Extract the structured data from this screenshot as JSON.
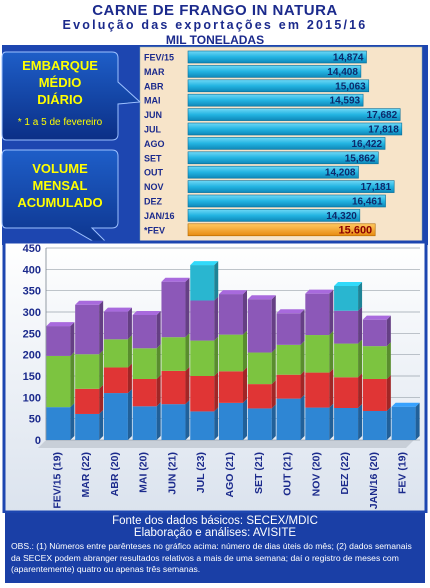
{
  "header": {
    "title": "CARNE DE FRANGO IN NATURA",
    "subtitle": "Evolução das exportações em 2015/16",
    "units": "MIL TONELADAS"
  },
  "callouts": {
    "daily": {
      "lines": [
        "EMBARQUE",
        "MÉDIO",
        "DIÁRIO"
      ],
      "note": "* 1 a 5 de fevereiro"
    },
    "monthly": {
      "lines": [
        "VOLUME",
        "MENSAL",
        "ACUMULADO"
      ]
    }
  },
  "chart_data": [
    {
      "type": "bar",
      "orientation": "horizontal",
      "categories": [
        "FEV/15",
        "MAR",
        "ABR",
        "MAI",
        "JUN",
        "JUL",
        "AGO",
        "SET",
        "OUT",
        "NOV",
        "DEZ",
        "JAN/16",
        "*FEV"
      ],
      "values": [
        14874,
        14408,
        15063,
        14593,
        17682,
        17818,
        16422,
        15862,
        14208,
        17181,
        16461,
        14320,
        15600
      ],
      "value_labels": [
        "14,874",
        "14,408",
        "15,063",
        "14,593",
        "17,682",
        "17,818",
        "16,422",
        "15,862",
        "14,208",
        "17,181",
        "16,461",
        "14,320",
        "15.600"
      ],
      "title": "",
      "xlabel": "",
      "ylabel": "",
      "xlim": [
        0,
        19000
      ],
      "colors": {
        "bar": "#2fbde8",
        "highlight": "#f5a020",
        "background": "#f7e4c9"
      }
    },
    {
      "type": "bar",
      "stacked": true,
      "categories": [
        "FEV/15 (19)",
        "MAR (22)",
        "ABR (20)",
        "MAI (20)",
        "JUN (21)",
        "JUL (23)",
        "AGO (21)",
        "SET (21)",
        "OUT (21)",
        "NOV (20)",
        "DEZ (22)",
        "JAN/16 (20)",
        "FEV (19)"
      ],
      "series": [
        {
          "color": "#2e86d4",
          "values": [
            77,
            61,
            110,
            79,
            84,
            67,
            87,
            74,
            97,
            76,
            75,
            68,
            78
          ]
        },
        {
          "color": "#e03535",
          "values": [
            0,
            59,
            60,
            64,
            78,
            83,
            74,
            57,
            56,
            82,
            72,
            75,
            0
          ]
        },
        {
          "color": "#7cc440",
          "values": [
            120,
            81,
            66,
            72,
            79,
            83,
            86,
            74,
            70,
            88,
            79,
            77,
            0
          ]
        },
        {
          "color": "#8c58b8",
          "values": [
            70,
            116,
            65,
            78,
            130,
            94,
            95,
            125,
            74,
            97,
            77,
            62,
            0
          ]
        },
        {
          "color": "#29b6d0",
          "values": [
            0,
            0,
            0,
            0,
            0,
            83,
            0,
            0,
            0,
            0,
            58,
            0,
            0
          ]
        }
      ],
      "title": "",
      "xlabel": "",
      "ylabel": "",
      "ylim": [
        0,
        450
      ],
      "yticks": [
        0,
        50,
        100,
        150,
        200,
        250,
        300,
        350,
        400,
        450
      ],
      "grid": true
    }
  ],
  "footer": {
    "source": "Fonte dos dados básicos: SECEX/MDIC",
    "analysis": "Elaboração e análises: AVISITE",
    "obs": "OBS.: (1) Números entre parênteses no gráfico acima: número de dias úteis do mês; (2) dados semanais da SECEX podem abranger resultados relativos a mais de uma semana; daí o registro de meses com (aparentemente) quatro ou apenas três semanas."
  }
}
